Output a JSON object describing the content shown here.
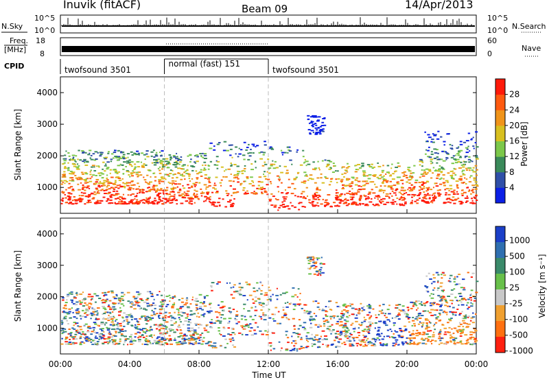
{
  "header": {
    "station": "Inuvik (fitACF)",
    "beam": "Beam 09",
    "date": "14/Apr/2013"
  },
  "top_panel": {
    "left_label": "N.Sky",
    "right_label": "N.Search",
    "left_ticks": [
      "10^5",
      "10^0"
    ],
    "right_ticks": [
      "10^5",
      "10^0"
    ]
  },
  "freq_panel": {
    "label_line1": "Freq.",
    "label_line2": "[MHz]",
    "left_ticks": [
      "18",
      "8"
    ],
    "right_ticks": [
      "60",
      "0"
    ],
    "right_label": "Nave"
  },
  "cpid": {
    "label": "CPID",
    "segments": [
      {
        "label": "twofsound 3501",
        "start_hour": 0,
        "end_hour": 6
      },
      {
        "label": "normal (fast) 151",
        "start_hour": 6,
        "end_hour": 12
      },
      {
        "label": "twofsound 3501",
        "start_hour": 12,
        "end_hour": 24
      }
    ]
  },
  "chart_data": [
    {
      "type": "heatmap",
      "title": "",
      "ylabel": "Slant Range [km]",
      "xlabel": "",
      "yticks": [
        "1000",
        "2000",
        "3000",
        "4000"
      ],
      "ylim": [
        180,
        4500
      ],
      "colorbar": {
        "label": "Power [dB]",
        "ticks": [
          "4",
          "8",
          "12",
          "16",
          "20",
          "24",
          "28"
        ],
        "colors": [
          "#0b1fe6",
          "#2f4fa8",
          "#3a8a5a",
          "#7cc84a",
          "#d8c020",
          "#f0941a",
          "#ff5a10",
          "#ff1a0a"
        ]
      }
    },
    {
      "type": "heatmap",
      "title": "",
      "ylabel": "Slant Range [km]",
      "xlabel": "Time UT",
      "yticks": [
        "1000",
        "2000",
        "3000",
        "4000"
      ],
      "ylim": [
        180,
        4500
      ],
      "xticks": [
        "00:00",
        "04:00",
        "08:00",
        "12:00",
        "16:00",
        "20:00",
        "00:00"
      ],
      "xlim": [
        0,
        24
      ],
      "colorbar": {
        "label": "Velocity [m s⁻¹]",
        "ticks": [
          "1000",
          "500",
          "100",
          "25",
          "-25",
          "-100",
          "-500",
          "-1000"
        ],
        "colors": [
          "#1b3fc8",
          "#2f6fb0",
          "#3a8a6a",
          "#68c04a",
          "#c8c8c8",
          "#f0a030",
          "#ff7010",
          "#ff2010"
        ]
      }
    }
  ]
}
